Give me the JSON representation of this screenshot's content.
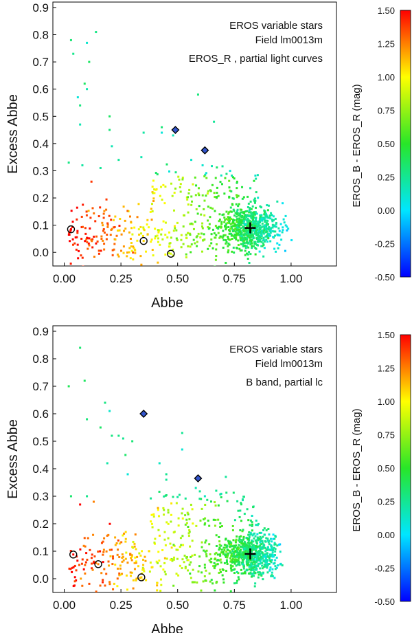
{
  "chart_data": [
    {
      "type": "scatter",
      "xlabel": "Abbe",
      "ylabel": "Excess Abbe",
      "xlim": [
        -0.05,
        1.2
      ],
      "ylim": [
        -0.05,
        0.92
      ],
      "xticks": [
        "0.00",
        "0.25",
        "0.50",
        "0.75",
        "1.00"
      ],
      "xtick_values": [
        0,
        0.25,
        0.5,
        0.75,
        1.0
      ],
      "yticks": [
        "0.0",
        "0.1",
        "0.2",
        "0.3",
        "0.4",
        "0.5",
        "0.6",
        "0.7",
        "0.8",
        "0.9"
      ],
      "ytick_values": [
        0,
        0.1,
        0.2,
        0.3,
        0.4,
        0.5,
        0.6,
        0.7,
        0.8,
        0.9
      ],
      "annotations": [
        "EROS variable stars",
        "Field lm0013m",
        "EROS_R , partial light curves"
      ],
      "colorbar": {
        "label": "EROS_B - EROS_R (mag)",
        "range": [
          -0.5,
          1.5
        ],
        "ticks": [
          "1.50",
          "1.25",
          "1.00",
          "0.75",
          "0.50",
          "0.25",
          "0.00",
          "-0.25",
          "-0.50"
        ],
        "tick_values": [
          1.5,
          1.25,
          1.0,
          0.75,
          0.5,
          0.25,
          0.0,
          -0.25,
          -0.5
        ]
      },
      "seed": 11,
      "cluster_center": [
        0.82,
        0.09
      ],
      "plus_marker": [
        0.82,
        0.09
      ],
      "circled_points": [
        [
          0.03,
          0.085
        ],
        [
          0.35,
          0.042
        ],
        [
          0.47,
          -0.005
        ]
      ],
      "diamond_points": [
        [
          0.49,
          0.45
        ],
        [
          0.62,
          0.375
        ]
      ],
      "sparse_points": [
        [
          0.03,
          0.78
        ],
        [
          0.04,
          0.73
        ],
        [
          0.14,
          0.81
        ],
        [
          0.1,
          0.77
        ],
        [
          0.11,
          0.7
        ],
        [
          0.09,
          0.62
        ],
        [
          0.1,
          0.6
        ],
        [
          0.06,
          0.57
        ],
        [
          0.07,
          0.54
        ],
        [
          0.07,
          0.47
        ],
        [
          0.2,
          0.5
        ],
        [
          0.2,
          0.45
        ],
        [
          0.21,
          0.39
        ],
        [
          0.24,
          0.34
        ],
        [
          0.43,
          0.46
        ],
        [
          0.43,
          0.44
        ],
        [
          0.48,
          0.43
        ],
        [
          0.35,
          0.44
        ],
        [
          0.34,
          0.35
        ],
        [
          0.59,
          0.58
        ],
        [
          0.66,
          0.48
        ],
        [
          0.56,
          0.34
        ],
        [
          0.61,
          0.32
        ],
        [
          0.02,
          0.33
        ],
        [
          0.08,
          0.32
        ],
        [
          0.12,
          0.26
        ],
        [
          0.16,
          0.31
        ]
      ]
    },
    {
      "type": "scatter",
      "xlabel": "Abbe",
      "ylabel": "Excess Abbe",
      "xlim": [
        -0.05,
        1.2
      ],
      "ylim": [
        -0.05,
        0.92
      ],
      "xticks": [
        "0.00",
        "0.25",
        "0.50",
        "0.75",
        "1.00"
      ],
      "xtick_values": [
        0,
        0.25,
        0.5,
        0.75,
        1.0
      ],
      "yticks": [
        "0.0",
        "0.1",
        "0.2",
        "0.3",
        "0.4",
        "0.5",
        "0.6",
        "0.7",
        "0.8",
        "0.9"
      ],
      "ytick_values": [
        0,
        0.1,
        0.2,
        0.3,
        0.4,
        0.5,
        0.6,
        0.7,
        0.8,
        0.9
      ],
      "annotations": [
        "EROS variable stars",
        "Field lm0013m",
        "B band, partial lc"
      ],
      "colorbar": {
        "label": "EROS_B - EROS_R (mag)",
        "range": [
          -0.5,
          1.5
        ],
        "ticks": [
          "1.50",
          "1.25",
          "1.00",
          "0.75",
          "0.50",
          "0.25",
          "0.00",
          "-0.25",
          "-0.50"
        ],
        "tick_values": [
          1.5,
          1.25,
          1.0,
          0.75,
          0.5,
          0.25,
          0.0,
          -0.25,
          -0.5
        ]
      },
      "seed": 29,
      "cluster_center": [
        0.82,
        0.09
      ],
      "plus_marker": [
        0.82,
        0.09
      ],
      "circled_points": [
        [
          0.04,
          0.088
        ],
        [
          0.15,
          0.053
        ],
        [
          0.34,
          0.005
        ]
      ],
      "diamond_points": [
        [
          0.35,
          0.6
        ],
        [
          0.59,
          0.365
        ]
      ],
      "sparse_points": [
        [
          0.07,
          0.84
        ],
        [
          0.02,
          0.7
        ],
        [
          0.09,
          0.72
        ],
        [
          0.18,
          0.64
        ],
        [
          0.2,
          0.61
        ],
        [
          0.1,
          0.58
        ],
        [
          0.16,
          0.55
        ],
        [
          0.21,
          0.52
        ],
        [
          0.24,
          0.52
        ],
        [
          0.26,
          0.51
        ],
        [
          0.3,
          0.5
        ],
        [
          0.27,
          0.45
        ],
        [
          0.19,
          0.42
        ],
        [
          0.28,
          0.38
        ],
        [
          0.52,
          0.53
        ],
        [
          0.52,
          0.47
        ],
        [
          0.42,
          0.42
        ],
        [
          0.45,
          0.38
        ],
        [
          0.45,
          0.36
        ],
        [
          0.59,
          0.37
        ],
        [
          0.62,
          0.3
        ],
        [
          0.03,
          0.3
        ],
        [
          0.07,
          0.27
        ],
        [
          0.1,
          0.3
        ],
        [
          0.13,
          0.28
        ],
        [
          0.58,
          0.33
        ],
        [
          0.67,
          0.32
        ]
      ]
    }
  ]
}
